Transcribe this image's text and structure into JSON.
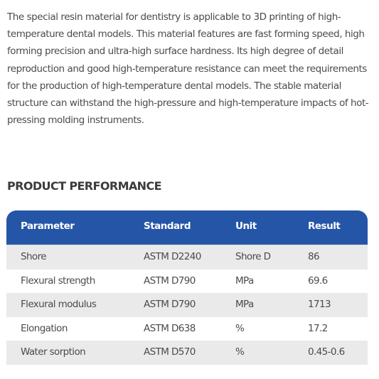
{
  "description": "The special resin material for dentistry is applicable to 3D printing of high-temperature dental models. This material features are fast forming speed, high forming precision and ultra-high surface hardness. Its high degree of detail reproduction and good high-temperature resistance can meet the requirements for the production of high-temperature dental models. The stable material structure can withstand the high-pressure and high-temperature impacts of hot-pressing molding instruments.",
  "section_title": "PRODUCT PERFORMANCE",
  "table": {
    "headers": [
      "Parameter",
      "Standard",
      "Unit",
      "Result"
    ],
    "header_color": "#2555a6",
    "rows": [
      [
        "Shore",
        "ASTM D2240",
        "Shore D",
        "86"
      ],
      [
        "Flexural strength",
        "ASTM D790",
        "MPa",
        "69.6"
      ],
      [
        "Flexural modulus",
        "ASTM D790",
        "MPa",
        "1713"
      ],
      [
        "Elongation",
        "ASTM D638",
        "%",
        "17.2"
      ],
      [
        "Water sorption",
        "ASTM D570",
        "%",
        "0.45-0.6"
      ]
    ]
  }
}
